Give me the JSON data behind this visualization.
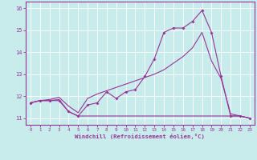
{
  "xlabel": "Windchill (Refroidissement éolien,°C)",
  "bg_color": "#c8ecec",
  "line_color": "#993399",
  "grid_color": "#aadddd",
  "xlim": [
    -0.5,
    23.5
  ],
  "ylim": [
    10.7,
    16.3
  ],
  "yticks": [
    11,
    12,
    13,
    14,
    15,
    16
  ],
  "xticks": [
    0,
    1,
    2,
    3,
    4,
    5,
    6,
    7,
    8,
    9,
    10,
    11,
    12,
    13,
    14,
    15,
    16,
    17,
    18,
    19,
    20,
    21,
    22,
    23
  ],
  "line1_x": [
    0,
    1,
    2,
    3,
    4,
    5,
    6,
    7,
    8,
    9,
    10,
    11,
    12,
    13,
    14,
    15,
    16,
    17,
    18,
    19,
    20,
    21,
    22,
    23
  ],
  "line1_y": [
    11.7,
    11.8,
    11.8,
    11.8,
    11.3,
    11.1,
    11.6,
    11.7,
    12.2,
    11.9,
    12.2,
    12.3,
    12.9,
    13.7,
    14.9,
    15.1,
    15.1,
    15.4,
    15.9,
    14.9,
    12.9,
    11.1,
    11.1,
    11.0
  ],
  "line2_x": [
    0,
    1,
    2,
    3,
    4,
    5,
    6,
    7,
    8,
    9,
    10,
    11,
    12,
    13,
    14,
    15,
    16,
    17,
    18,
    19,
    20,
    21,
    22,
    23
  ],
  "line2_y": [
    11.7,
    11.8,
    11.85,
    11.95,
    11.55,
    11.25,
    11.9,
    12.1,
    12.25,
    12.4,
    12.55,
    12.7,
    12.85,
    13.0,
    13.2,
    13.5,
    13.8,
    14.2,
    14.9,
    13.6,
    12.8,
    11.2,
    11.1,
    11.0
  ],
  "line3_x": [
    0,
    1,
    2,
    3,
    4,
    5,
    6,
    7,
    8,
    9,
    10,
    11,
    12,
    13,
    14,
    15,
    16,
    17,
    18,
    19,
    20,
    21,
    22,
    23
  ],
  "line3_y": [
    11.7,
    11.8,
    11.8,
    11.85,
    11.3,
    11.1,
    11.1,
    11.1,
    11.1,
    11.1,
    11.1,
    11.1,
    11.1,
    11.1,
    11.1,
    11.1,
    11.1,
    11.1,
    11.1,
    11.1,
    11.1,
    11.1,
    11.1,
    11.0
  ]
}
